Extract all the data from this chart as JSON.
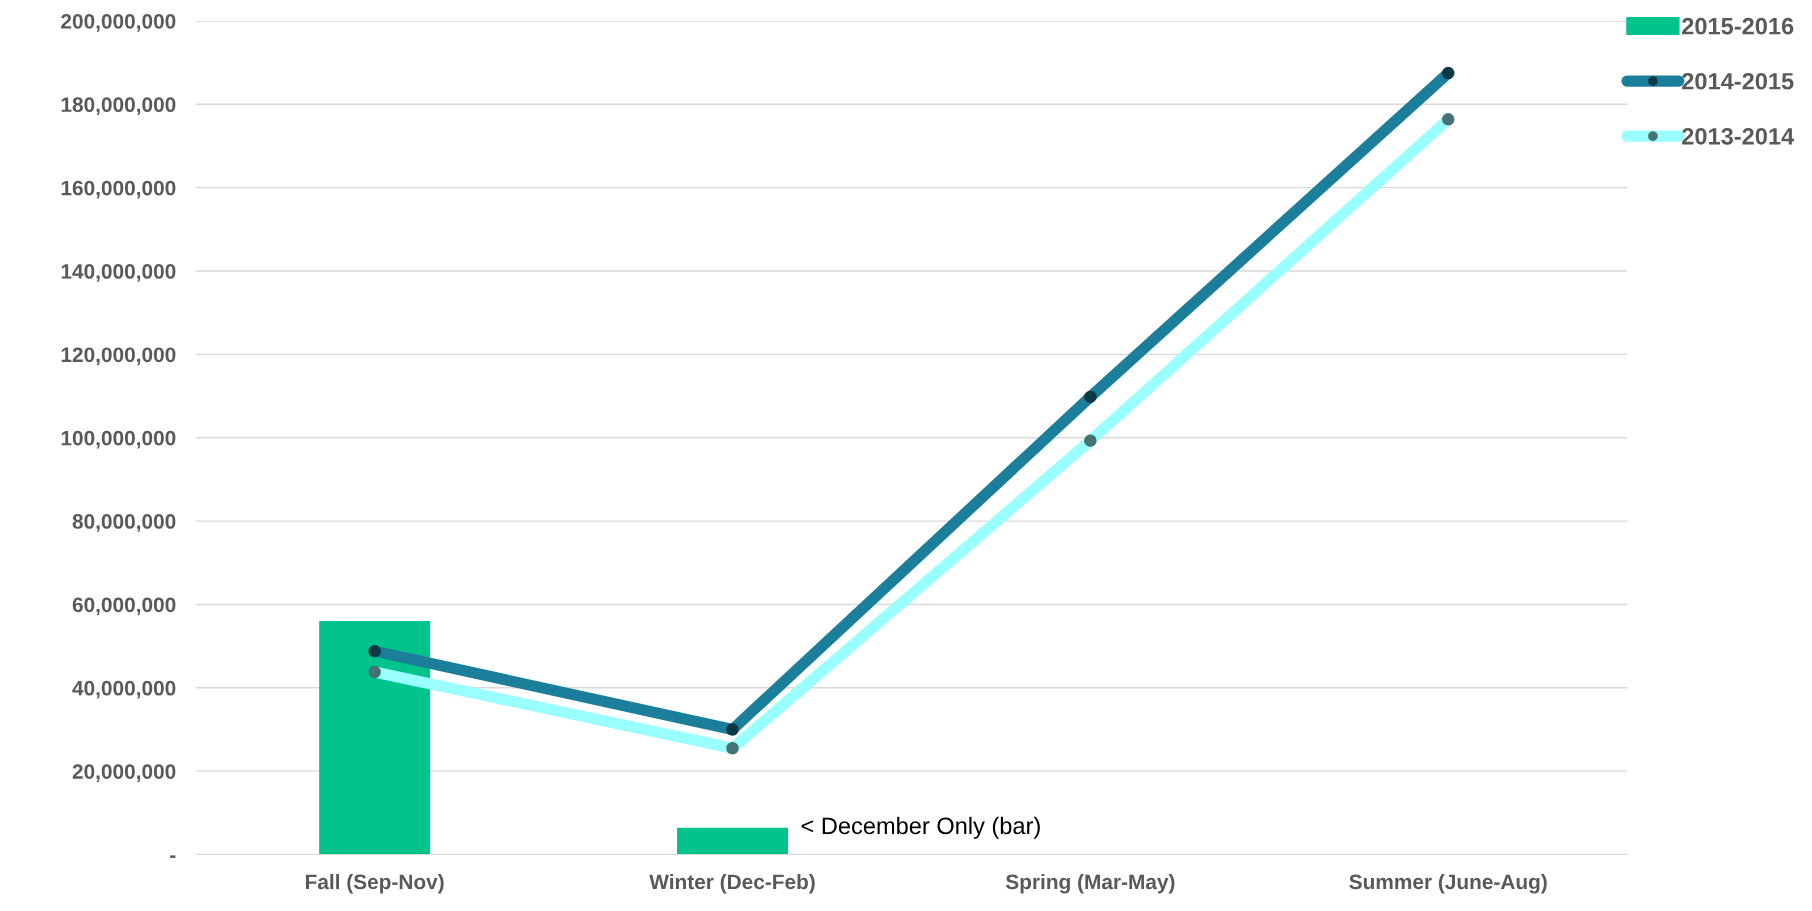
{
  "chart_data": {
    "type": "bar",
    "categories": [
      "Fall (Sep-Nov)",
      "Winter (Dec-Feb)",
      "Spring (Mar-May)",
      "Summer (June-Aug)"
    ],
    "series": [
      {
        "name": "2015-2016",
        "color": "#00c48c",
        "values": [
          56000000,
          6400000,
          null,
          null
        ]
      },
      {
        "name": "2014-2015",
        "type": "line",
        "color": "#1b7f9b",
        "marker": "circle",
        "values": [
          48800000,
          30000000,
          109800000,
          187500000
        ]
      },
      {
        "name": "2013-2014",
        "type": "line",
        "color": "#99ffff",
        "marker": "circle",
        "values": [
          43800000,
          25500000,
          99300000,
          176400000
        ]
      }
    ],
    "ylim": [
      0,
      200000000
    ],
    "yticks": [
      {
        "value": 0,
        "label": "-"
      },
      {
        "value": 20000000,
        "label": "20,000,000"
      },
      {
        "value": 40000000,
        "label": "40,000,000"
      },
      {
        "value": 60000000,
        "label": "60,000,000"
      },
      {
        "value": 80000000,
        "label": "80,000,000"
      },
      {
        "value": 100000000,
        "label": "100,000,000"
      },
      {
        "value": 120000000,
        "label": "120,000,000"
      },
      {
        "value": 140000000,
        "label": "140,000,000"
      },
      {
        "value": 160000000,
        "label": "160,000,000"
      },
      {
        "value": 180000000,
        "label": "180,000,000"
      },
      {
        "value": 200000000,
        "label": "200,000,000"
      }
    ],
    "grid": "y",
    "legend": "top right",
    "annotations": [
      {
        "text": "< December Only (bar)",
        "x": "Winter (Dec-Feb)",
        "y": 6400000
      }
    ]
  }
}
